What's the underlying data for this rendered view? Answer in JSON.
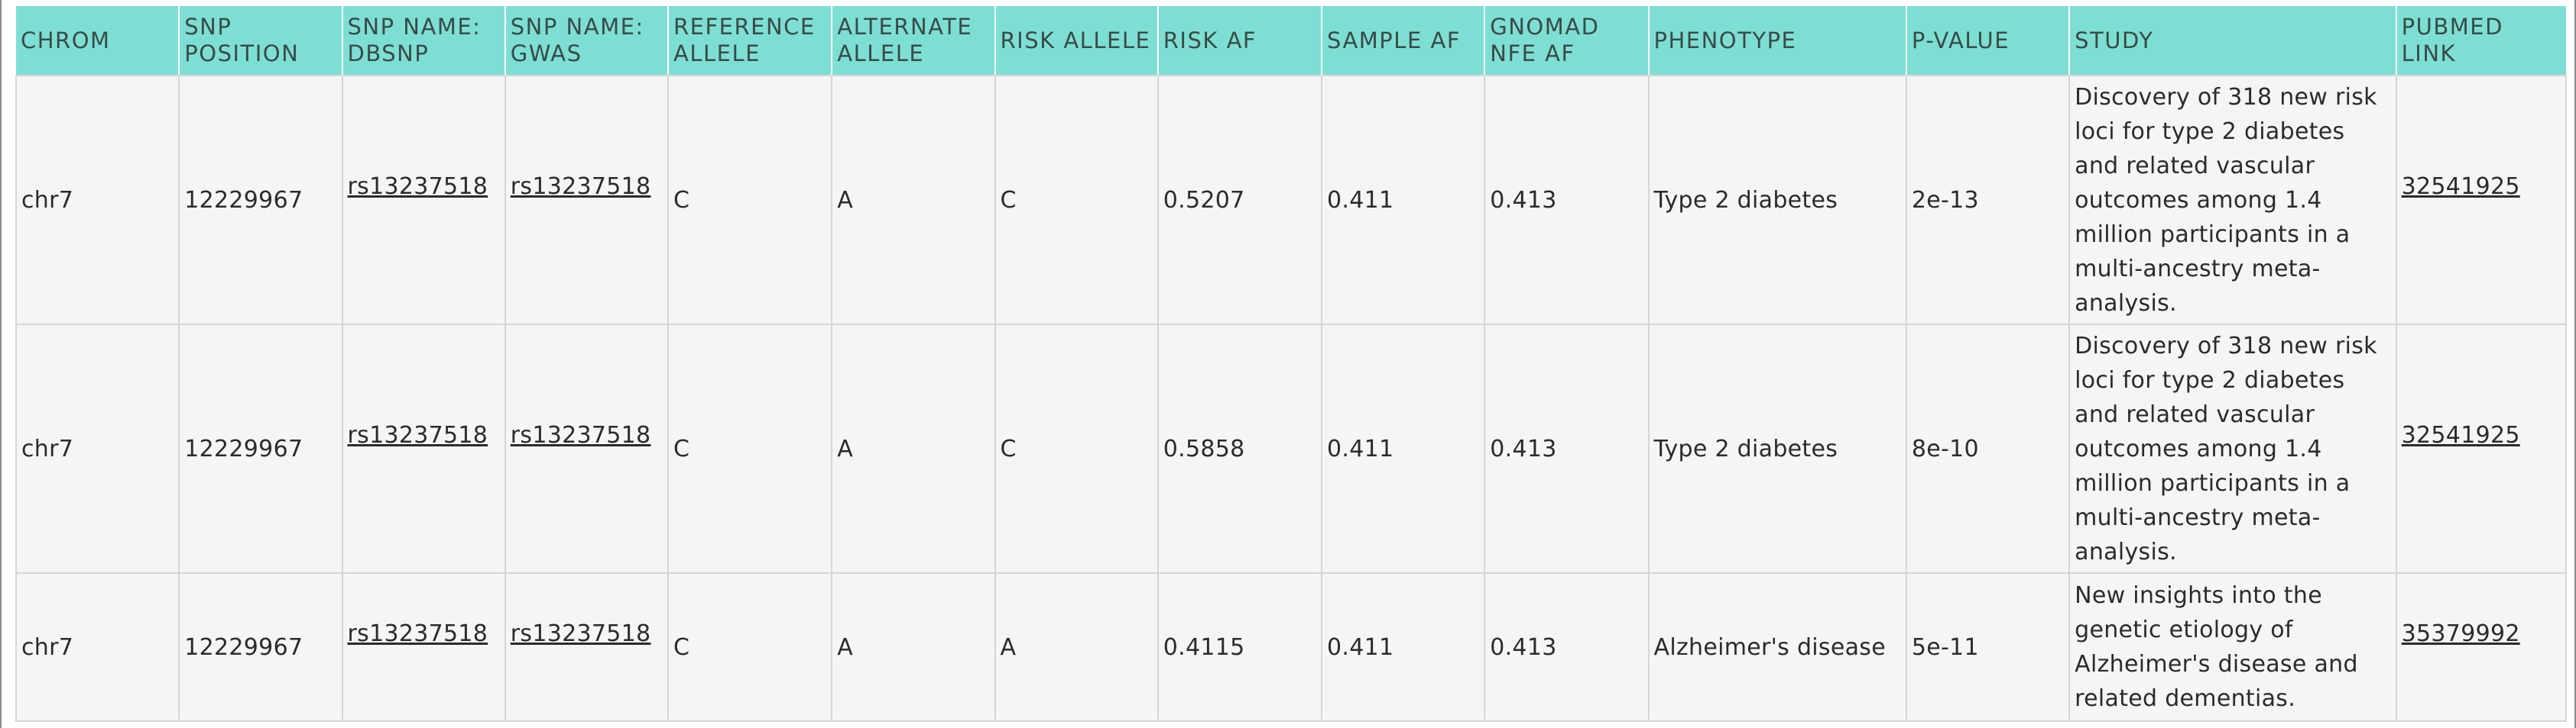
{
  "table": {
    "headers": [
      "CHROM",
      "SNP POSITION",
      "SNP NAME: DBSNP",
      "SNP NAME: GWAS",
      "REFERENCE ALLELE",
      "ALTERNATE ALLELE",
      "RISK ALLELE",
      "RISK AF",
      "SAMPLE AF",
      "GNOMAD NFE AF",
      "PHENOTYPE",
      "P-VALUE",
      "STUDY",
      "PUBMED LINK"
    ],
    "rows": [
      {
        "chrom": "chr7",
        "position": "12229967",
        "dbsnp": "rs13237518",
        "gwas": "rs13237518",
        "ref": "C",
        "alt": "A",
        "risk_allele": "C",
        "risk_af": "0.5207",
        "sample_af": "0.411",
        "gnomad_af": "0.413",
        "phenotype": "Type 2 diabetes",
        "pvalue": "2e-13",
        "study": "Discovery of 318 new risk loci for type 2 diabetes and related vascular outcomes among 1.4 million participants in a multi-ancestry meta-analysis.",
        "pubmed": "32541925"
      },
      {
        "chrom": "chr7",
        "position": "12229967",
        "dbsnp": "rs13237518",
        "gwas": "rs13237518",
        "ref": "C",
        "alt": "A",
        "risk_allele": "C",
        "risk_af": "0.5858",
        "sample_af": "0.411",
        "gnomad_af": "0.413",
        "phenotype": "Type 2 diabetes",
        "pvalue": "8e-10",
        "study": "Discovery of 318 new risk loci for type 2 diabetes and related vascular outcomes among 1.4 million participants in a multi-ancestry meta-analysis.",
        "pubmed": "32541925"
      },
      {
        "chrom": "chr7",
        "position": "12229967",
        "dbsnp": "rs13237518",
        "gwas": "rs13237518",
        "ref": "C",
        "alt": "A",
        "risk_allele": "A",
        "risk_af": "0.4115",
        "sample_af": "0.411",
        "gnomad_af": "0.413",
        "phenotype": "Alzheimer's disease",
        "pvalue": "5e-11",
        "study": "New insights into the genetic etiology of Alzheimer's disease and related dementias.",
        "pubmed": "35379992"
      }
    ]
  }
}
